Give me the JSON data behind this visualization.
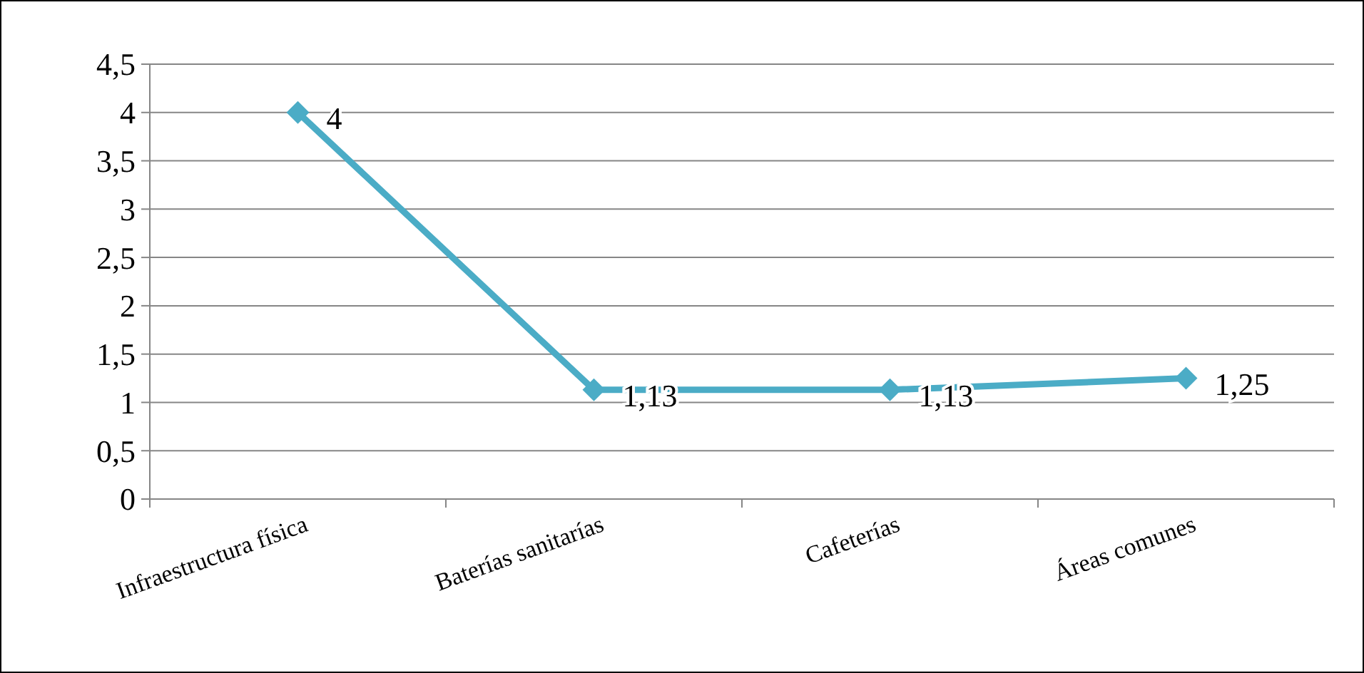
{
  "chart_data": {
    "type": "line",
    "categories": [
      "Infraestructura física",
      "Baterías sanitarías",
      "Cafeterías",
      "Áreas comunes"
    ],
    "series": [
      {
        "color": "#4bacc6",
        "values": [
          4,
          1.13,
          1.13,
          1.25
        ],
        "value_labels": [
          "4",
          "1,13",
          "1,13",
          "1,25"
        ]
      }
    ],
    "ylim": [
      0,
      4.5
    ],
    "yticks": [
      0,
      {
        "value": 0.5,
        "label": "0,5"
      },
      1,
      {
        "value": 1.5,
        "label": "1,5"
      },
      2,
      {
        "value": 2.5,
        "label": "2,5"
      },
      3,
      {
        "value": 3.5,
        "label": "3,5"
      },
      4,
      {
        "value": 4.5,
        "label": "4,5"
      }
    ],
    "grid": "y",
    "marker": "diamond",
    "line_style": "solid"
  }
}
